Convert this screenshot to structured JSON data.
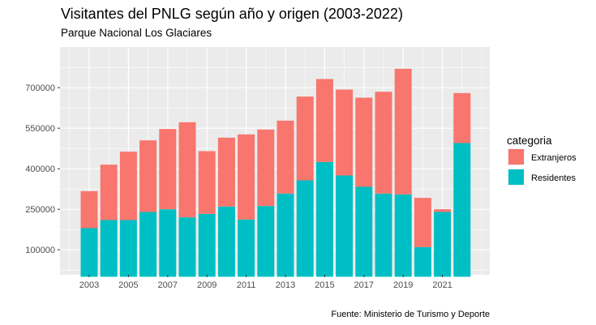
{
  "chart_data": {
    "type": "bar",
    "stacked": true,
    "title": "Visitantes del PNLG según año y origen (2003-2022)",
    "subtitle": "Parque Nacional Los Glaciares",
    "caption": "Fuente: Ministerio de Turismo y Deporte",
    "legend": {
      "title": "categoria",
      "position": "right"
    },
    "x": [
      2003,
      2004,
      2005,
      2006,
      2007,
      2008,
      2009,
      2010,
      2011,
      2012,
      2013,
      2014,
      2015,
      2016,
      2017,
      2018,
      2019,
      2020,
      2021,
      2022
    ],
    "x_ticks": [
      "2003",
      "2005",
      "2007",
      "2009",
      "2011",
      "2013",
      "2015",
      "2017",
      "2019",
      "2021"
    ],
    "y_ticks": [
      "100000",
      "250000",
      "400000",
      "550000",
      "700000"
    ],
    "ylim": [
      0,
      780000
    ],
    "grid": true,
    "series": [
      {
        "name": "Residentes",
        "color": "#00BFC4",
        "values": [
          180000,
          210000,
          210000,
          240000,
          250000,
          220000,
          233000,
          260000,
          212000,
          262000,
          308000,
          357000,
          425000,
          375000,
          333000,
          308000,
          305000,
          110000,
          240000,
          495000
        ]
      },
      {
        "name": "Extranjeros",
        "color": "#F8766D",
        "values": [
          137000,
          205000,
          253000,
          265000,
          297000,
          352000,
          232000,
          255000,
          315000,
          283000,
          270000,
          310000,
          307000,
          318000,
          330000,
          377000,
          465000,
          182000,
          10000,
          185000
        ]
      }
    ],
    "legend_order": [
      "Extranjeros",
      "Residentes"
    ]
  }
}
